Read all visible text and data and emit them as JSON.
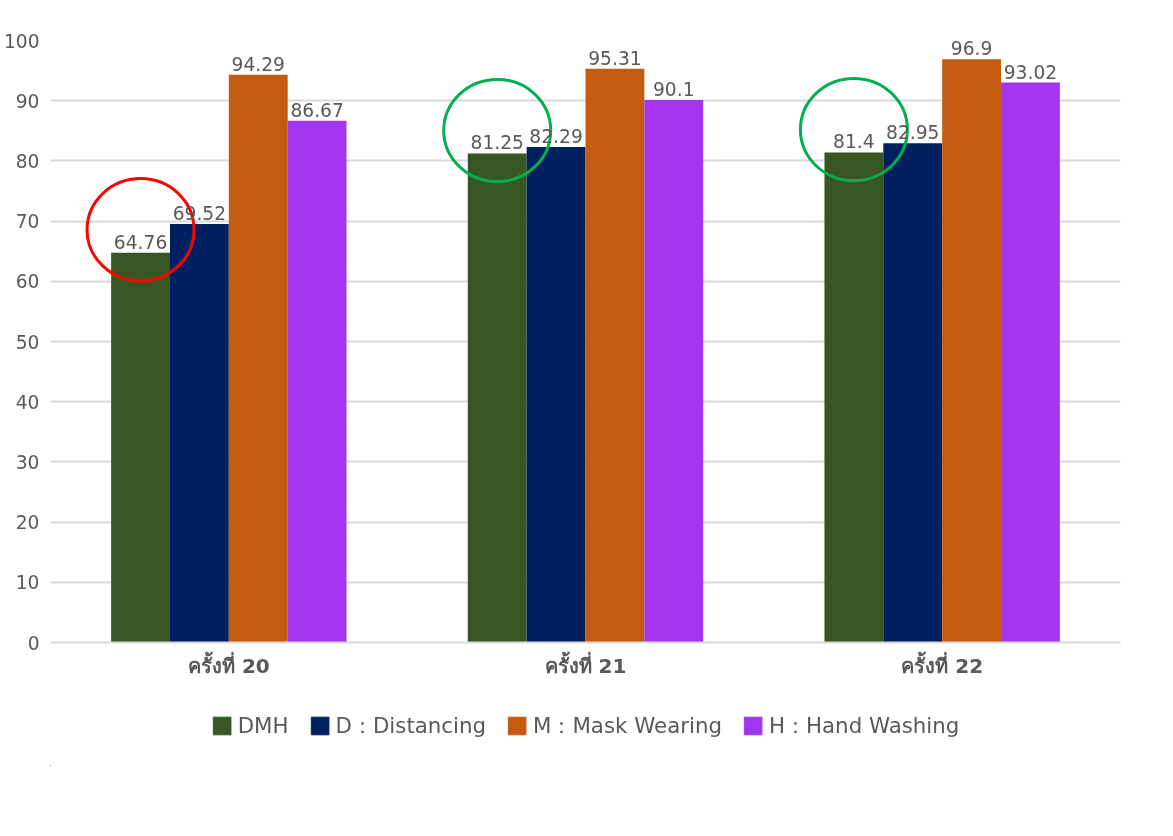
{
  "chart_data": {
    "type": "bar",
    "categories": [
      "ครั้งที่ 20",
      "ครั้งที่ 21",
      "ครั้งที่ 22"
    ],
    "series": [
      {
        "name": "DMH",
        "color": "#375623",
        "values": [
          64.76,
          81.25,
          81.4
        ]
      },
      {
        "name": "D：Distancing",
        "color": "#002060",
        "values": [
          69.52,
          82.29,
          82.95
        ]
      },
      {
        "name": "M：Mask Wearing",
        "color": "#c55a11",
        "values": [
          94.29,
          95.31,
          96.9
        ]
      },
      {
        "name": "H：Hand Washing",
        "color": "#a335ee",
        "values": [
          86.67,
          90.1,
          93.02
        ]
      }
    ],
    "ylim": [
      0,
      100
    ],
    "yticks": [
      0,
      10,
      20,
      30,
      40,
      50,
      60,
      70,
      80,
      90,
      100
    ],
    "grid": "y",
    "legend": "bottom",
    "data_labels": true
  }
}
